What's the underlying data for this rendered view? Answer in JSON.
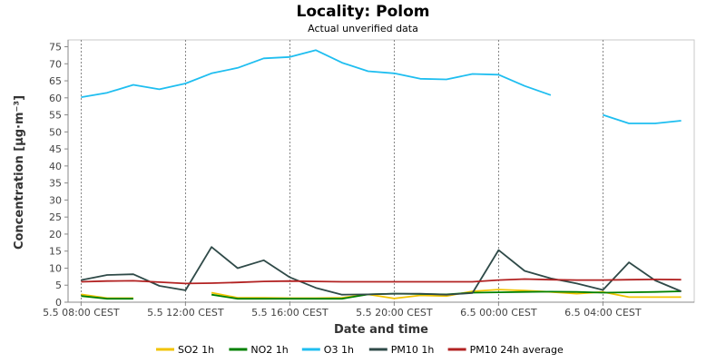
{
  "chart_data": {
    "type": "line",
    "title": "Locality: Polom",
    "subtitle": "Actual unverified data",
    "xlabel": "Date and time",
    "ylabel": "Concentration [µg·m⁻³]",
    "ylim": [
      0,
      77
    ],
    "y_ticks": [
      0,
      5,
      10,
      15,
      20,
      25,
      30,
      35,
      40,
      45,
      50,
      55,
      60,
      65,
      70,
      75
    ],
    "x_ticks": [
      {
        "label": "5.5 08:00 CEST",
        "hour": 0
      },
      {
        "label": "5.5 12:00 CEST",
        "hour": 4
      },
      {
        "label": "5.5 16:00 CEST",
        "hour": 8
      },
      {
        "label": "5.5 20:00 CEST",
        "hour": 12
      },
      {
        "label": "6.5 00:00 CEST",
        "hour": 16
      },
      {
        "label": "6.5 04:00 CEST",
        "hour": 20
      }
    ],
    "xlim": [
      -0.5,
      23.5
    ],
    "grid": true,
    "legend_position": "bottom",
    "series": [
      {
        "name": "SO2 1h",
        "color": "#f2c300",
        "values": [
          2.3,
          1.2,
          1.2,
          null,
          null,
          2.8,
          1.3,
          1.3,
          1.2,
          1.2,
          1.3,
          2.3,
          1.1,
          2.0,
          1.8,
          3.2,
          3.7,
          3.4,
          3.0,
          2.5,
          3.0,
          1.5,
          1.5,
          1.5
        ]
      },
      {
        "name": "NO2 1h",
        "color": "#008000",
        "values": [
          1.8,
          1.0,
          1.0,
          null,
          null,
          2.2,
          1.0,
          1.0,
          1.0,
          1.0,
          1.0,
          2.3,
          2.5,
          2.4,
          2.3,
          2.8,
          2.9,
          3.0,
          3.1,
          3.0,
          2.8,
          2.9,
          3.0,
          3.2
        ]
      },
      {
        "name": "O3 1h",
        "color": "#1fbef0",
        "values": [
          60.2,
          61.5,
          63.8,
          62.5,
          64.2,
          67.2,
          68.8,
          71.6,
          72.0,
          74.0,
          70.3,
          67.8,
          67.2,
          65.6,
          65.4,
          67.0,
          66.8,
          63.5,
          60.8,
          null,
          55.0,
          52.5,
          52.5,
          53.3
        ]
      },
      {
        "name": "PM10 1h",
        "color": "#2f4a48",
        "values": [
          6.5,
          8.0,
          8.2,
          4.8,
          3.5,
          16.2,
          10.0,
          12.3,
          7.3,
          4.2,
          2.2,
          2.3,
          2.5,
          2.5,
          2.2,
          2.7,
          15.3,
          9.2,
          7.0,
          5.5,
          3.6,
          11.7,
          6.4,
          3.2
        ]
      },
      {
        "name": "PM10 24h average",
        "color": "#b22222",
        "values": [
          6.0,
          6.2,
          6.3,
          5.9,
          5.5,
          5.6,
          5.8,
          6.1,
          6.2,
          6.1,
          6.0,
          6.0,
          6.0,
          6.0,
          6.0,
          6.0,
          6.5,
          6.8,
          6.6,
          6.5,
          6.5,
          6.6,
          6.7,
          6.6
        ]
      }
    ]
  }
}
